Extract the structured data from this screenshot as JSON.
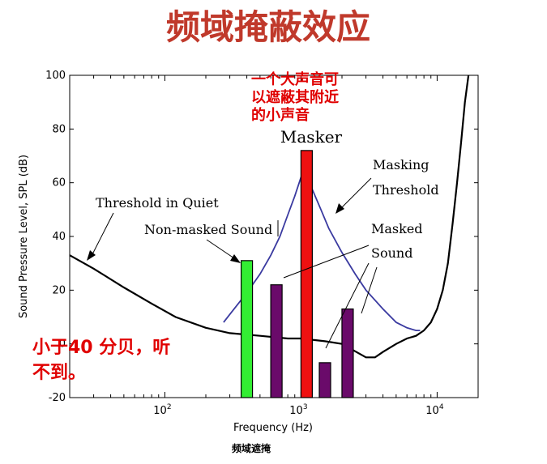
{
  "slide": {
    "title": "频域掩蔽效应",
    "caption": "频域遮掩",
    "title_color": "#c0392b"
  },
  "chart_data": {
    "type": "bar",
    "xlabel": "Frequency (Hz)",
    "ylabel": "Sound Pressure Level, SPL (dB)",
    "x_scale": "log",
    "xlim": [
      20,
      20000
    ],
    "ylim": [
      -20,
      100
    ],
    "y_ticks": [
      "-20",
      "0",
      "20",
      "40",
      "60",
      "80",
      "100"
    ],
    "x_ticks": [
      {
        "base": "10",
        "exp": "2",
        "value": 100
      },
      {
        "base": "10",
        "exp": "3",
        "value": 1000
      },
      {
        "base": "10",
        "exp": "4",
        "value": 10000
      }
    ],
    "threshold_in_quiet": {
      "color": "#000000",
      "points": [
        [
          20,
          33
        ],
        [
          30,
          28
        ],
        [
          50,
          21
        ],
        [
          80,
          15
        ],
        [
          120,
          10
        ],
        [
          200,
          6
        ],
        [
          300,
          4
        ],
        [
          500,
          3
        ],
        [
          800,
          2
        ],
        [
          1000,
          2
        ],
        [
          1500,
          1
        ],
        [
          2000,
          0
        ],
        [
          3000,
          -5
        ],
        [
          3500,
          -5
        ],
        [
          4000,
          -3
        ],
        [
          5000,
          0
        ],
        [
          6000,
          2
        ],
        [
          7000,
          3
        ],
        [
          8000,
          5
        ],
        [
          9000,
          8
        ],
        [
          10000,
          13
        ],
        [
          11000,
          20
        ],
        [
          12000,
          30
        ],
        [
          13000,
          45
        ],
        [
          14000,
          60
        ],
        [
          15000,
          75
        ],
        [
          16000,
          90
        ],
        [
          17000,
          100
        ]
      ]
    },
    "masking_threshold": {
      "color": "#3a3aa0",
      "points": [
        [
          270,
          8
        ],
        [
          300,
          11
        ],
        [
          400,
          19
        ],
        [
          500,
          26
        ],
        [
          600,
          33
        ],
        [
          700,
          40
        ],
        [
          800,
          48
        ],
        [
          900,
          55
        ],
        [
          1000,
          62
        ],
        [
          1100,
          64
        ],
        [
          1200,
          58
        ],
        [
          1400,
          50
        ],
        [
          1600,
          43
        ],
        [
          2000,
          34
        ],
        [
          2500,
          26
        ],
        [
          3000,
          20
        ],
        [
          4000,
          13
        ],
        [
          5000,
          8
        ],
        [
          6000,
          6
        ],
        [
          7000,
          5
        ],
        [
          7500,
          5
        ]
      ]
    },
    "bars": [
      {
        "name": "non-masked",
        "x": 400,
        "value": 31,
        "color": "#33ee33"
      },
      {
        "name": "masked-1",
        "x": 660,
        "value": 22,
        "color": "#6a0a6a"
      },
      {
        "name": "masker",
        "x": 1100,
        "value": 72,
        "color": "#ee1111"
      },
      {
        "name": "masked-2",
        "x": 1500,
        "value": -7,
        "color": "#6a0a6a"
      },
      {
        "name": "masked-3",
        "x": 2200,
        "value": 13,
        "color": "#6a0a6a"
      }
    ],
    "annotations": {
      "masker": "Masker",
      "threshold_in_quiet": "Threshold in Quiet",
      "non_masked_sound": "Non-masked Sound",
      "masking_threshold_1": "Masking",
      "masking_threshold_2": "Threshold",
      "masked_sound_1": "Masked",
      "masked_sound_2": "Sound",
      "zh_masker_1": "一个大声音可",
      "zh_masker_2": "以遮蔽其附近",
      "zh_masker_3": "的小声音",
      "zh_inaudible_1": "小于40  分贝，听",
      "zh_inaudible_2": "不到。"
    }
  }
}
